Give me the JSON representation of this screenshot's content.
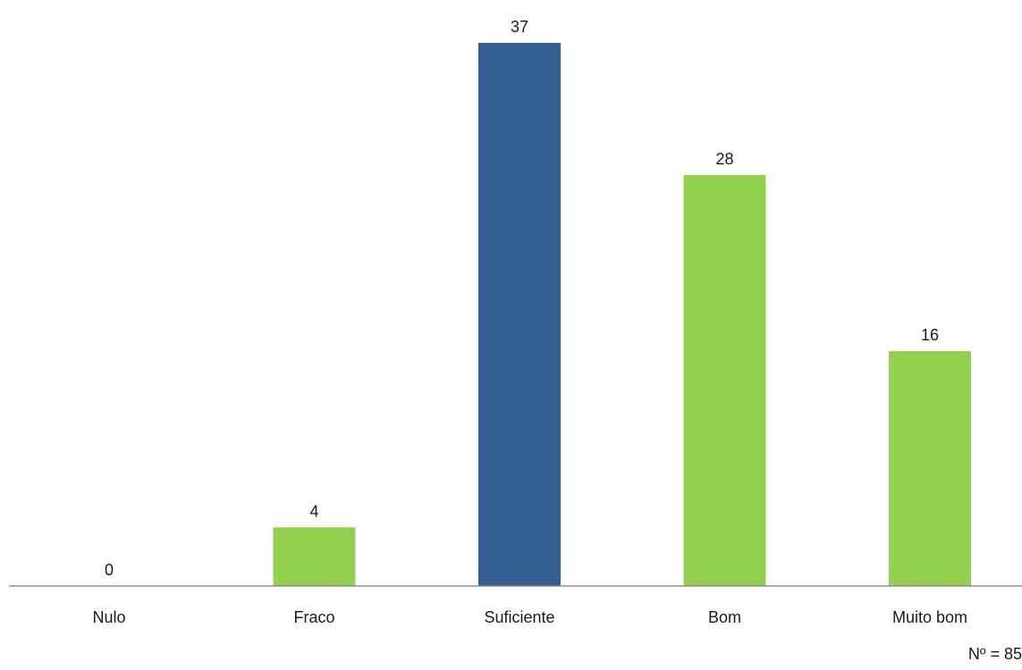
{
  "chart_data": {
    "type": "bar",
    "title": "",
    "xlabel": "",
    "ylabel": "",
    "categories": [
      "Nulo",
      "Fraco",
      "Suficiente",
      "Bom",
      "Muito bom"
    ],
    "values": [
      0,
      4,
      37,
      28,
      16
    ],
    "data_labels": [
      "0",
      "4",
      "37",
      "28",
      "16"
    ],
    "ylim": [
      0,
      37
    ],
    "grid": false,
    "legend": "none",
    "colors": [
      "#92d050",
      "#92d050",
      "#355f91",
      "#92d050",
      "#92d050"
    ],
    "note": "Nº = 85"
  }
}
